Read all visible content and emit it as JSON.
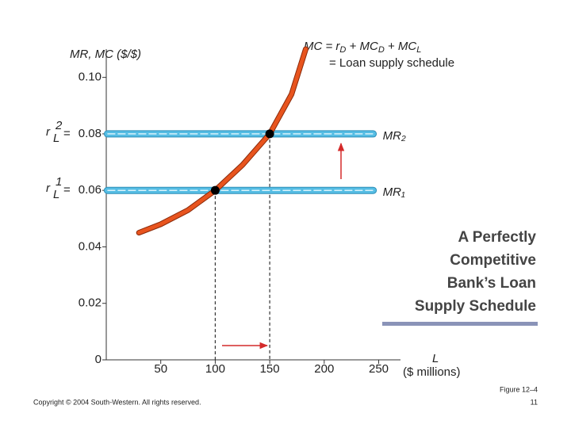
{
  "chart_data": {
    "type": "line",
    "y_label": "MR, MC ($/$)",
    "x_label": "L",
    "x_unit": "($ millions)",
    "xlim": [
      0,
      270
    ],
    "ylim": [
      0,
      0.11
    ],
    "xticks": [
      50,
      100,
      150,
      200,
      250
    ],
    "yticks": [
      0,
      0.02,
      0.04,
      0.06,
      0.08,
      {
        "value": 0.1,
        "label": "0.10"
      }
    ],
    "rate_labels": [
      [
        "r",
        "L",
        "1",
        "="
      ],
      [
        "r",
        "L",
        "2",
        "="
      ]
    ],
    "mc_label": [
      "MC = r",
      "D",
      " + MC",
      "D",
      " + MC",
      "L"
    ],
    "mc_label_line2": "= Loan supply schedule",
    "series": [
      {
        "name": "MC",
        "color": "#e8541e",
        "x": [
          30,
          50,
          75,
          100,
          125,
          150,
          170,
          183
        ],
        "values": [
          0.045,
          0.048,
          0.053,
          0.06,
          0.069,
          0.08,
          0.094,
          0.11
        ]
      },
      {
        "name": "MR₁",
        "color": "#55bde4",
        "x": [
          1,
          245
        ],
        "values": [
          0.06,
          0.06
        ]
      },
      {
        "name": "MR₂",
        "color": "#55bde4",
        "x": [
          1,
          245
        ],
        "values": [
          0.08,
          0.08
        ]
      }
    ],
    "points": {
      "x": [
        100,
        150
      ],
      "values": [
        0.06,
        0.08
      ]
    }
  },
  "slide_title": "A Perfectly Competitive Bank’s Loan Supply Schedule",
  "footer": {
    "copyright": "Copyright © 2004 South-Western. All rights reserved.",
    "figure": "Figure 12–4",
    "page": "11"
  }
}
